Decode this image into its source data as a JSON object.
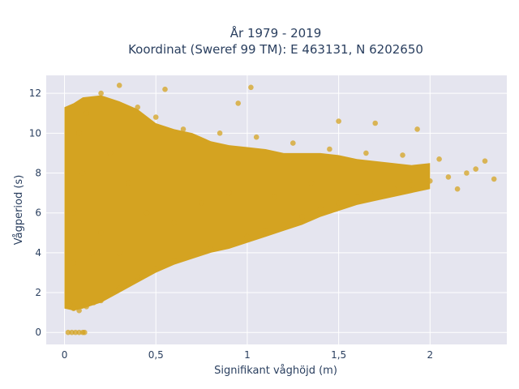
{
  "chart_data": {
    "type": "scatter",
    "title_line1": "År 1979 - 2019",
    "title_line2": "Koordinat (Sweref 99 TM): E 463131, N 6202650",
    "xlabel": "Signifikant våghöjd (m)",
    "ylabel": "Vågperiod (s)",
    "xlim": [
      -0.1,
      2.42
    ],
    "ylim": [
      -0.6,
      12.9
    ],
    "x_ticks": [
      0,
      0.5,
      1,
      1.5,
      2
    ],
    "x_tick_labels": [
      "0",
      "0,5",
      "1",
      "1,5",
      "2"
    ],
    "y_ticks": [
      0,
      2,
      4,
      6,
      8,
      10,
      12
    ],
    "y_tick_labels": [
      "0",
      "2",
      "4",
      "6",
      "8",
      "10",
      "12"
    ],
    "grid": true,
    "marker_color": "#d4a321",
    "background_color": "#e5e5ef",
    "points": [
      {
        "x": 0.02,
        "y": 0
      },
      {
        "x": 0.04,
        "y": 0
      },
      {
        "x": 0.06,
        "y": 0
      },
      {
        "x": 0.08,
        "y": 0
      },
      {
        "x": 0.1,
        "y": 0
      },
      {
        "x": 0.11,
        "y": 0
      },
      {
        "x": 0.03,
        "y": 1.4
      },
      {
        "x": 0.05,
        "y": 1.2
      },
      {
        "x": 0.08,
        "y": 1.1
      },
      {
        "x": 0.12,
        "y": 1.3
      },
      {
        "x": 0.16,
        "y": 1.5
      },
      {
        "x": 0.2,
        "y": 1.6
      },
      {
        "x": 0.25,
        "y": 2.0
      },
      {
        "x": 0.3,
        "y": 2.2
      },
      {
        "x": 0.35,
        "y": 2.5
      },
      {
        "x": 0.4,
        "y": 2.8
      },
      {
        "x": 0.5,
        "y": 3.2
      },
      {
        "x": 0.6,
        "y": 3.6
      },
      {
        "x": 0.7,
        "y": 3.9
      },
      {
        "x": 0.8,
        "y": 4.2
      },
      {
        "x": 0.9,
        "y": 4.5
      },
      {
        "x": 1.0,
        "y": 4.8
      },
      {
        "x": 1.1,
        "y": 5.1
      },
      {
        "x": 1.2,
        "y": 5.4
      },
      {
        "x": 1.3,
        "y": 5.8
      },
      {
        "x": 1.4,
        "y": 6.2
      },
      {
        "x": 1.5,
        "y": 6.5
      },
      {
        "x": 1.6,
        "y": 6.8
      },
      {
        "x": 1.7,
        "y": 7.0
      },
      {
        "x": 1.8,
        "y": 7.2
      },
      {
        "x": 1.9,
        "y": 7.4
      },
      {
        "x": 2.0,
        "y": 7.6
      },
      {
        "x": 2.1,
        "y": 7.8
      },
      {
        "x": 2.2,
        "y": 8.0
      },
      {
        "x": 2.3,
        "y": 8.6
      },
      {
        "x": 2.25,
        "y": 8.2
      },
      {
        "x": 2.05,
        "y": 8.7
      },
      {
        "x": 1.85,
        "y": 8.9
      },
      {
        "x": 1.65,
        "y": 9.0
      },
      {
        "x": 1.45,
        "y": 9.2
      },
      {
        "x": 1.25,
        "y": 9.5
      },
      {
        "x": 1.05,
        "y": 9.8
      },
      {
        "x": 0.85,
        "y": 10.0
      },
      {
        "x": 0.65,
        "y": 10.2
      },
      {
        "x": 0.5,
        "y": 10.8
      },
      {
        "x": 0.4,
        "y": 11.3
      },
      {
        "x": 0.3,
        "y": 12.4
      },
      {
        "x": 0.2,
        "y": 12.0
      },
      {
        "x": 0.55,
        "y": 12.2
      },
      {
        "x": 1.02,
        "y": 12.3
      },
      {
        "x": 0.95,
        "y": 11.5
      },
      {
        "x": 1.5,
        "y": 10.6
      },
      {
        "x": 1.7,
        "y": 10.5
      },
      {
        "x": 1.93,
        "y": 10.2
      },
      {
        "x": 0.1,
        "y": 8.0
      },
      {
        "x": 0.08,
        "y": 10.0
      },
      {
        "x": 0.12,
        "y": 11.0
      },
      {
        "x": 0.25,
        "y": 9.0
      },
      {
        "x": 0.35,
        "y": 7.5
      },
      {
        "x": 0.45,
        "y": 6.0
      },
      {
        "x": 0.6,
        "y": 5.5
      },
      {
        "x": 0.75,
        "y": 6.5
      },
      {
        "x": 0.9,
        "y": 7.0
      },
      {
        "x": 1.15,
        "y": 6.8
      },
      {
        "x": 1.35,
        "y": 7.5
      },
      {
        "x": 0.15,
        "y": 4.0
      },
      {
        "x": 0.05,
        "y": 3.5
      },
      {
        "x": 0.05,
        "y": 6.0
      },
      {
        "x": 0.2,
        "y": 5.0
      },
      {
        "x": 0.3,
        "y": 4.0
      },
      {
        "x": 2.15,
        "y": 7.2
      },
      {
        "x": 2.35,
        "y": 7.7
      }
    ]
  }
}
